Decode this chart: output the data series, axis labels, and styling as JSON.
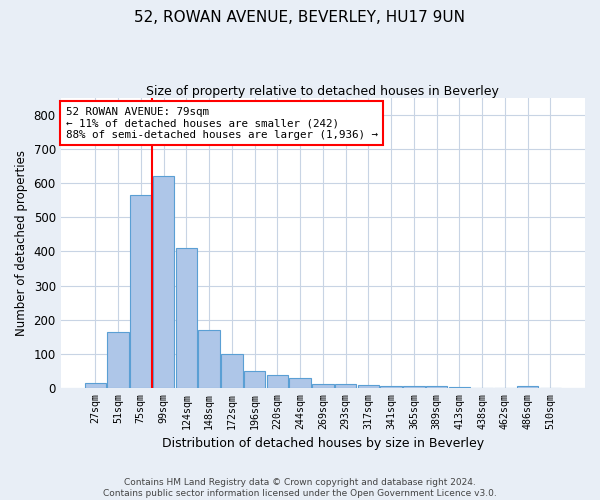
{
  "title": "52, ROWAN AVENUE, BEVERLEY, HU17 9UN",
  "subtitle": "Size of property relative to detached houses in Beverley",
  "xlabel": "Distribution of detached houses by size in Beverley",
  "ylabel": "Number of detached properties",
  "bar_labels": [
    "27sqm",
    "51sqm",
    "75sqm",
    "99sqm",
    "124sqm",
    "148sqm",
    "172sqm",
    "196sqm",
    "220sqm",
    "244sqm",
    "269sqm",
    "293sqm",
    "317sqm",
    "341sqm",
    "365sqm",
    "389sqm",
    "413sqm",
    "438sqm",
    "462sqm",
    "486sqm",
    "510sqm"
  ],
  "bar_values": [
    15,
    165,
    565,
    620,
    410,
    170,
    100,
    50,
    37,
    28,
    12,
    10,
    7,
    5,
    5,
    4,
    1,
    0,
    0,
    5,
    0
  ],
  "bar_color": "#aec6e8",
  "bar_edge_color": "#5a9fd4",
  "vline_index": 2,
  "annotation_text": "52 ROWAN AVENUE: 79sqm\n← 11% of detached houses are smaller (242)\n88% of semi-detached houses are larger (1,936) →",
  "annotation_box_color": "white",
  "annotation_box_edge_color": "red",
  "vline_color": "red",
  "ylim": [
    0,
    850
  ],
  "yticks": [
    0,
    100,
    200,
    300,
    400,
    500,
    600,
    700,
    800
  ],
  "footer_line1": "Contains HM Land Registry data © Crown copyright and database right 2024.",
  "footer_line2": "Contains public sector information licensed under the Open Government Licence v3.0.",
  "background_color": "#e8eef6",
  "plot_bg_color": "white",
  "grid_color": "#c8d4e4"
}
